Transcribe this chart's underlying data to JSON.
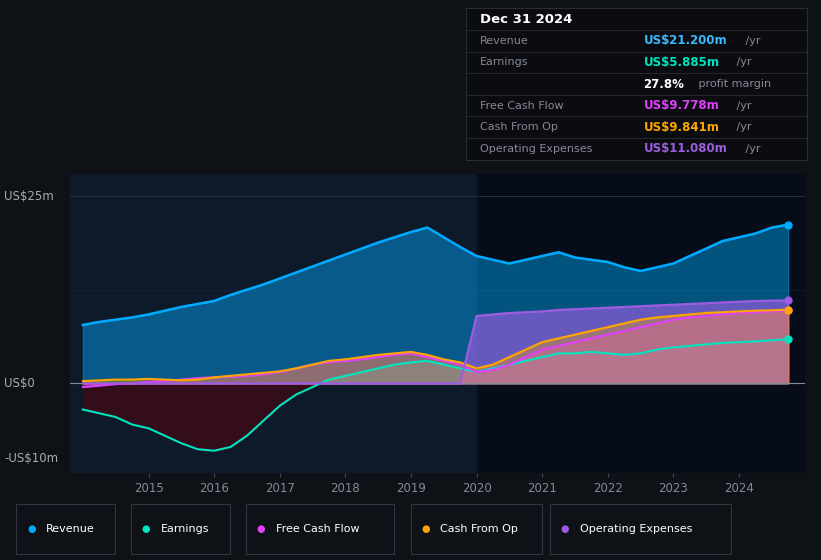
{
  "bg_color": "#0e1116",
  "plot_bg_color": "#0d1a2a",
  "dark_bg_color": "#080e18",
  "title": "Dec 31 2024",
  "table_data": {
    "Revenue": {
      "label": "Revenue",
      "value": "US$21.200m",
      "color": "#3cb9fc"
    },
    "Earnings": {
      "label": "Earnings",
      "value": "US$5.885m",
      "color": "#00e5c0"
    },
    "profit_margin": {
      "label": "",
      "value": "27.8%",
      "suffix": " profit margin"
    },
    "Free Cash Flow": {
      "label": "Free Cash Flow",
      "value": "US$9.778m",
      "color": "#e040fb"
    },
    "Cash From Op": {
      "label": "Cash From Op",
      "value": "US$9.841m",
      "color": "#ffa500"
    },
    "Operating Expenses": {
      "label": "Operating Expenses",
      "value": "US$11.080m",
      "color": "#9c5de0"
    }
  },
  "years": [
    2014.0,
    2014.25,
    2014.5,
    2014.75,
    2015.0,
    2015.25,
    2015.5,
    2015.75,
    2016.0,
    2016.25,
    2016.5,
    2016.75,
    2017.0,
    2017.25,
    2017.5,
    2017.75,
    2018.0,
    2018.25,
    2018.5,
    2018.75,
    2019.0,
    2019.25,
    2019.5,
    2019.75,
    2020.0,
    2020.25,
    2020.5,
    2020.75,
    2021.0,
    2021.25,
    2021.5,
    2021.75,
    2022.0,
    2022.25,
    2022.5,
    2022.75,
    2023.0,
    2023.25,
    2023.5,
    2023.75,
    2024.0,
    2024.25,
    2024.5,
    2024.75
  ],
  "revenue": [
    7.8,
    8.2,
    8.5,
    8.8,
    9.2,
    9.7,
    10.2,
    10.6,
    11.0,
    11.8,
    12.5,
    13.2,
    14.0,
    14.8,
    15.6,
    16.4,
    17.2,
    18.0,
    18.8,
    19.5,
    20.2,
    20.8,
    19.5,
    18.2,
    17.0,
    16.5,
    16.0,
    16.5,
    17.0,
    17.5,
    16.8,
    16.5,
    16.2,
    15.5,
    15.0,
    15.5,
    16.0,
    17.0,
    18.0,
    19.0,
    19.5,
    20.0,
    20.8,
    21.2
  ],
  "earnings": [
    -3.5,
    -4.0,
    -4.5,
    -5.5,
    -6.0,
    -7.0,
    -8.0,
    -8.8,
    -9.0,
    -8.5,
    -7.0,
    -5.0,
    -3.0,
    -1.5,
    -0.5,
    0.5,
    1.0,
    1.5,
    2.0,
    2.5,
    2.8,
    3.0,
    2.5,
    2.0,
    1.5,
    2.0,
    2.5,
    3.0,
    3.5,
    4.0,
    4.0,
    4.2,
    4.0,
    3.8,
    4.0,
    4.5,
    4.8,
    5.0,
    5.2,
    5.4,
    5.5,
    5.6,
    5.75,
    5.885
  ],
  "free_cash_flow": [
    -0.5,
    -0.3,
    -0.1,
    0.0,
    0.2,
    0.3,
    0.5,
    0.7,
    0.8,
    0.9,
    1.0,
    1.2,
    1.5,
    2.0,
    2.5,
    2.8,
    3.0,
    3.2,
    3.5,
    3.8,
    4.0,
    3.5,
    3.0,
    2.5,
    1.5,
    1.8,
    2.5,
    3.5,
    4.5,
    5.0,
    5.5,
    6.0,
    6.5,
    7.0,
    7.5,
    8.0,
    8.5,
    8.8,
    9.0,
    9.2,
    9.4,
    9.5,
    9.6,
    9.778
  ],
  "cash_from_op": [
    0.3,
    0.4,
    0.5,
    0.5,
    0.6,
    0.5,
    0.4,
    0.5,
    0.8,
    1.0,
    1.2,
    1.4,
    1.6,
    2.0,
    2.5,
    3.0,
    3.2,
    3.5,
    3.8,
    4.0,
    4.2,
    3.8,
    3.2,
    2.8,
    2.0,
    2.5,
    3.5,
    4.5,
    5.5,
    6.0,
    6.5,
    7.0,
    7.5,
    8.0,
    8.5,
    8.8,
    9.0,
    9.2,
    9.4,
    9.5,
    9.6,
    9.7,
    9.75,
    9.841
  ],
  "operating_expenses": [
    0.0,
    0.0,
    0.0,
    0.0,
    0.0,
    0.0,
    0.0,
    0.0,
    0.0,
    0.0,
    0.0,
    0.0,
    0.0,
    0.0,
    0.0,
    0.0,
    0.0,
    0.0,
    0.0,
    0.0,
    0.0,
    0.0,
    0.0,
    0.0,
    9.0,
    9.2,
    9.4,
    9.5,
    9.6,
    9.8,
    9.9,
    10.0,
    10.1,
    10.2,
    10.3,
    10.4,
    10.5,
    10.6,
    10.7,
    10.8,
    10.9,
    11.0,
    11.04,
    11.08
  ],
  "revenue_color": "#00aaff",
  "earnings_color": "#00e5c0",
  "fcf_color": "#e040fb",
  "cashop_color": "#ffa500",
  "opex_color": "#9c5de0",
  "ylim": [
    -12,
    28
  ],
  "xlim": [
    2013.8,
    2025.0
  ],
  "xticks": [
    2015,
    2016,
    2017,
    2018,
    2019,
    2020,
    2021,
    2022,
    2023,
    2024
  ],
  "legend_items": [
    {
      "label": "Revenue",
      "color": "#00aaff"
    },
    {
      "label": "Earnings",
      "color": "#00e5c0"
    },
    {
      "label": "Free Cash Flow",
      "color": "#e040fb"
    },
    {
      "label": "Cash From Op",
      "color": "#ffa500"
    },
    {
      "label": "Operating Expenses",
      "color": "#9c5de0"
    }
  ]
}
